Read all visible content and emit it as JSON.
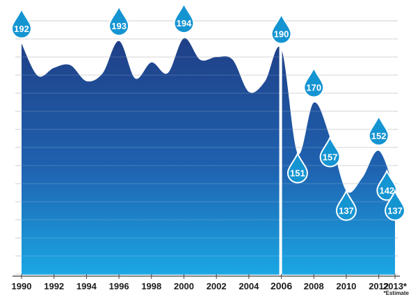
{
  "chart_data": {
    "type": "area",
    "x": [
      1990,
      1991,
      1992,
      1993,
      1994,
      1995,
      1996,
      1997,
      1998,
      1999,
      2000,
      2001,
      2002,
      2003,
      2004,
      2005,
      2006,
      2007,
      2008,
      2009,
      2010,
      2011,
      2012,
      2013
    ],
    "values": [
      192,
      180,
      183,
      184,
      178,
      181,
      193,
      179,
      185,
      181,
      194,
      186,
      187,
      186,
      174,
      178,
      190,
      151,
      170,
      157,
      137,
      142,
      152,
      137
    ],
    "labeled_points": [
      {
        "x": 1990,
        "label": "192",
        "side": "above"
      },
      {
        "x": 1996,
        "label": "193",
        "side": "above"
      },
      {
        "x": 2000,
        "label": "194",
        "side": "above"
      },
      {
        "x": 2006,
        "label": "190",
        "side": "above"
      },
      {
        "x": 2007,
        "label": "151",
        "side": "below"
      },
      {
        "x": 2008,
        "label": "170",
        "side": "above"
      },
      {
        "x": 2009,
        "label": "157",
        "side": "below"
      },
      {
        "x": 2010,
        "label": "137",
        "side": "below"
      },
      {
        "x": 2012,
        "label": "152",
        "side": "above"
      },
      {
        "x": 2012.5,
        "label": "142",
        "side": "below"
      },
      {
        "x": 2013,
        "label": "137",
        "side": "below"
      }
    ],
    "x_ticks": [
      {
        "x": 1990,
        "label": "1990",
        "bold": false
      },
      {
        "x": 1992,
        "label": "1992",
        "bold": false
      },
      {
        "x": 1994,
        "label": "1994",
        "bold": false
      },
      {
        "x": 1996,
        "label": "1996",
        "bold": false
      },
      {
        "x": 1998,
        "label": "1998",
        "bold": false
      },
      {
        "x": 2000,
        "label": "2000",
        "bold": false
      },
      {
        "x": 2002,
        "label": "2002",
        "bold": false
      },
      {
        "x": 2004,
        "label": "2004",
        "bold": false
      },
      {
        "x": 2006,
        "label": "2006",
        "bold": true
      },
      {
        "x": 2008,
        "label": "2008",
        "bold": false
      },
      {
        "x": 2010,
        "label": "2010",
        "bold": false
      },
      {
        "x": 2012,
        "label": "2012",
        "bold": false
      },
      {
        "x": 2013,
        "label": "2013*",
        "bold": false
      }
    ],
    "footnote": "*Estimate",
    "divider_year": 2006,
    "grid": true,
    "colors": {
      "top": "#1f3f86",
      "bottom": "#1aa7e4",
      "drop": "#1594d2",
      "grid": "#cccccc"
    }
  }
}
